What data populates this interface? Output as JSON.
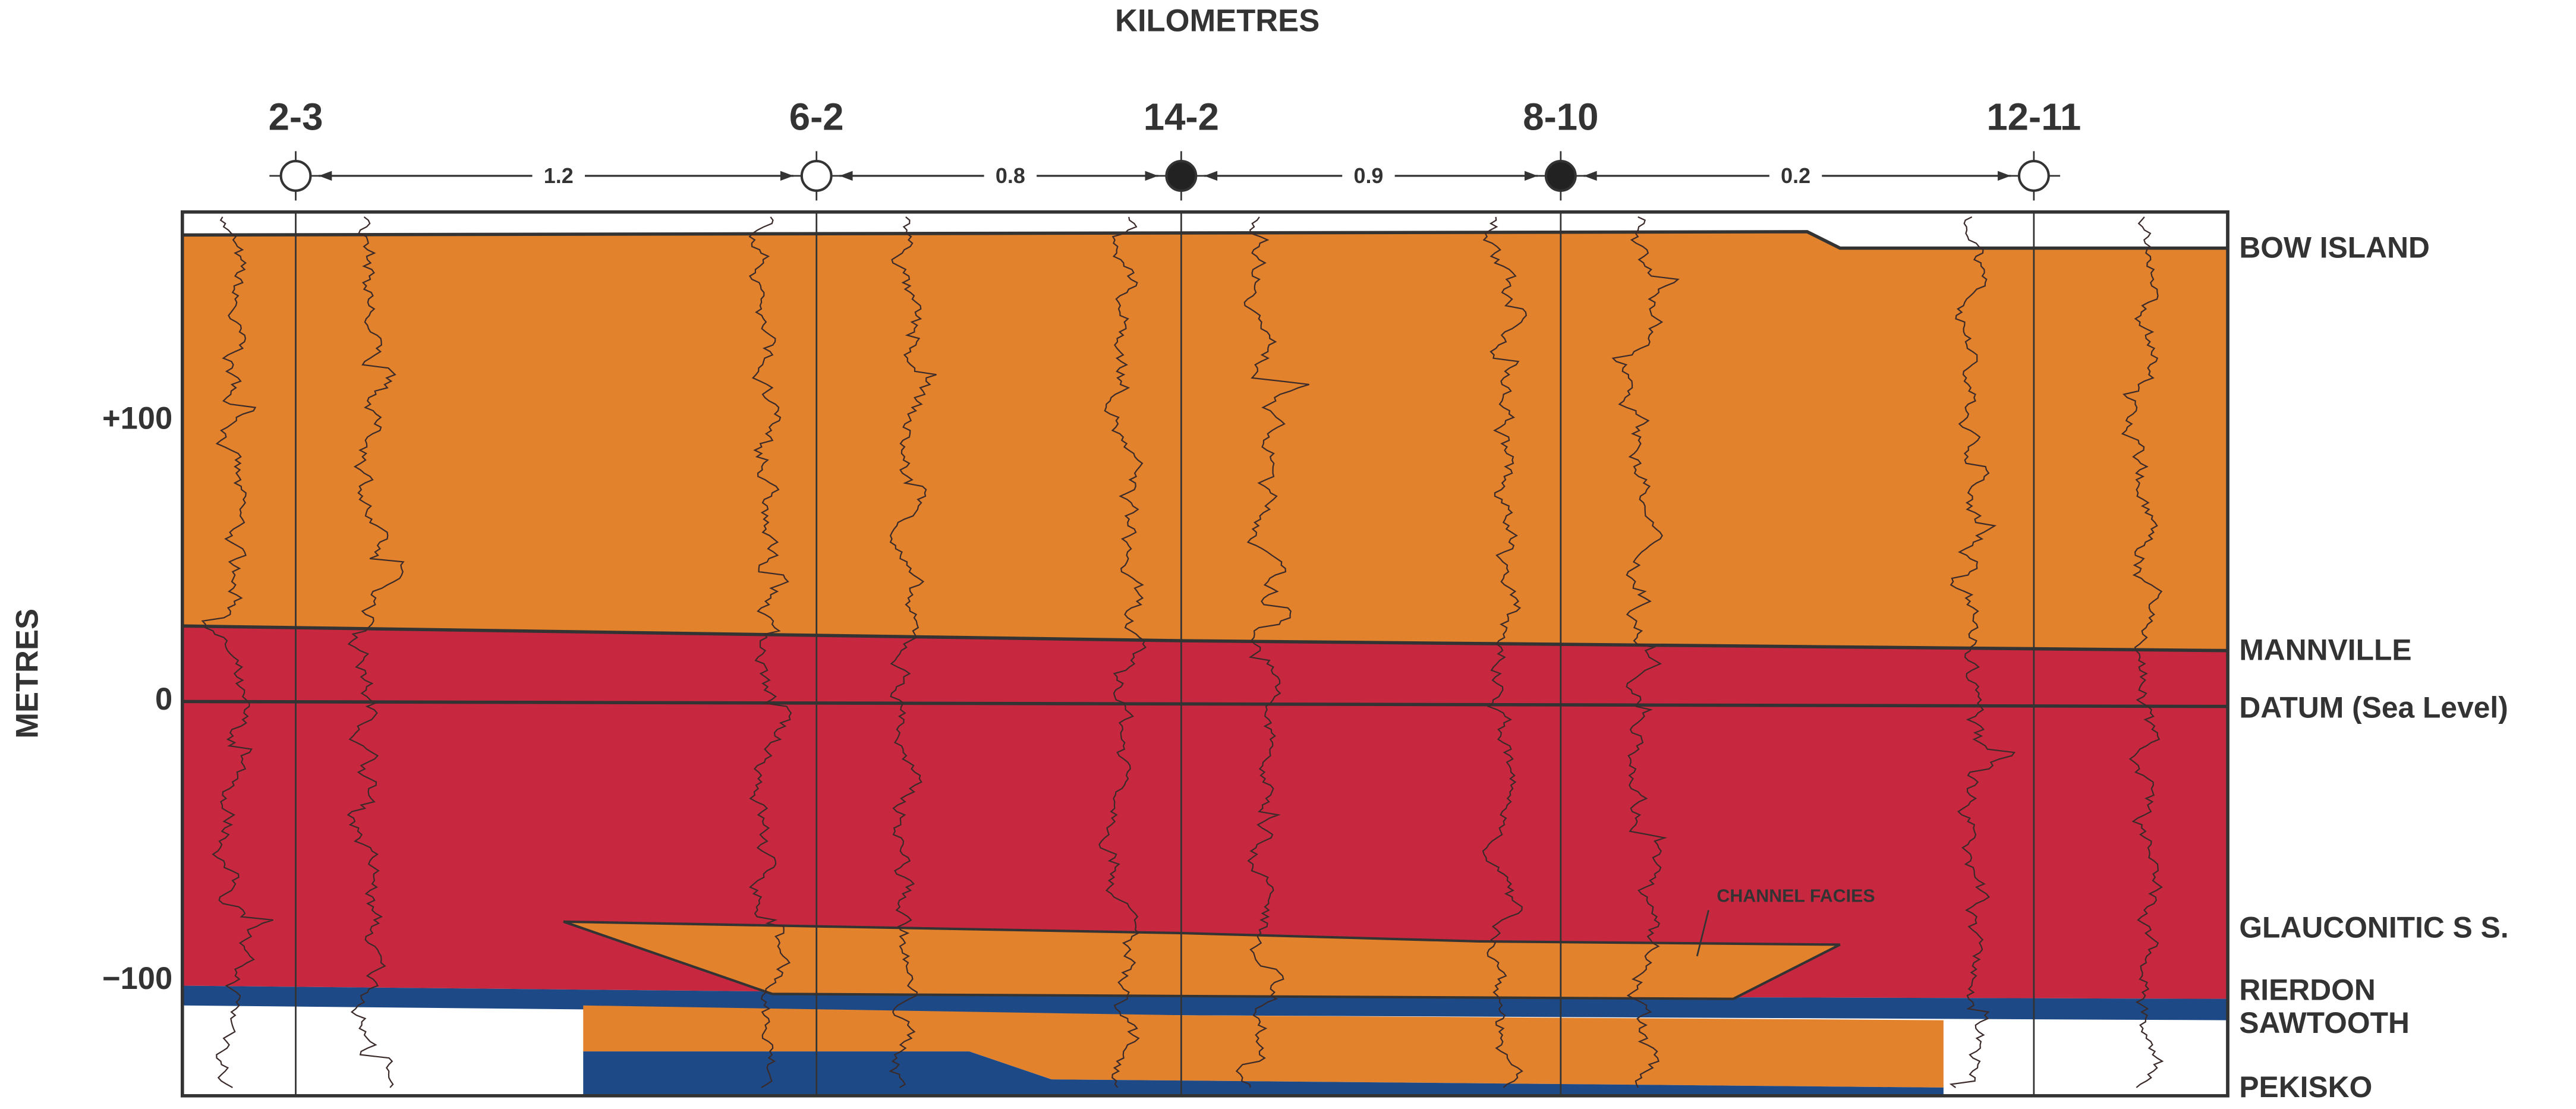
{
  "header": {
    "title": "KILOMETRES",
    "axis_label": "METRES"
  },
  "wells": [
    {
      "label": "2-3"
    },
    {
      "label": "6-2"
    },
    {
      "label": "14-2"
    },
    {
      "label": "8-10"
    },
    {
      "label": "12-11"
    }
  ],
  "distances": [
    "1.2",
    "0.8",
    "0.9",
    "0.2"
  ],
  "depth_ticks": [
    "+100",
    "0",
    "−100"
  ],
  "formations": [
    "BOW ISLAND",
    "MANNVILLE",
    "DATUM (Sea Level)",
    "GLAUCONITIC S S.",
    "RIERDON",
    "SAWTOOTH",
    "PEKISKO"
  ],
  "annotation": "CHANNEL FACIES"
}
